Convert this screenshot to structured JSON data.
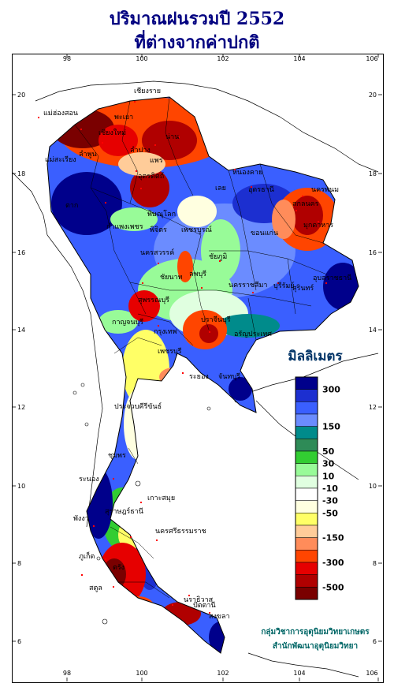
{
  "title_line1": "ปริมาณฝนรวมปี  2552",
  "title_line2": "ที่ต่างจากค่าปกติ",
  "axes": {
    "x_ticks": [
      "98",
      "100",
      "102",
      "104",
      "106"
    ],
    "y_ticks": [
      "20",
      "18",
      "16",
      "14",
      "12",
      "10",
      "8",
      "6"
    ]
  },
  "legend": {
    "title": "มิลลิเมตร",
    "colors": [
      "#00008b",
      "#1c2fd0",
      "#3a5fff",
      "#6b8cff",
      "#008b8b",
      "#2e8b57",
      "#32cd32",
      "#98fb98",
      "#e0ffe0",
      "#ffffff",
      "#ffffe0",
      "#ffff66",
      "#ffcc99",
      "#ff8c5a",
      "#ff4500",
      "#e60000",
      "#b00000",
      "#7a0000"
    ],
    "labels": [
      "300",
      "150",
      "50",
      "30",
      "10",
      "-10",
      "-30",
      "-50",
      "-150",
      "-300",
      "-500"
    ]
  },
  "places": [
    {
      "name": "เชียงราย"
    },
    {
      "name": "แม่ฮ่องสอน"
    },
    {
      "name": "พะเยา"
    },
    {
      "name": "เชียงใหม่"
    },
    {
      "name": "ลำพูน"
    },
    {
      "name": "ลำปาง"
    },
    {
      "name": "น่าน"
    },
    {
      "name": "แพร่"
    },
    {
      "name": "แม่สะเรียง"
    },
    {
      "name": "อุตรดิตถ์"
    },
    {
      "name": "ตาก"
    },
    {
      "name": "พิษณุโลก"
    },
    {
      "name": "หนองคาย"
    },
    {
      "name": "อุดรธานี"
    },
    {
      "name": "เลย"
    },
    {
      "name": "นครพนม"
    },
    {
      "name": "สกลนคร"
    },
    {
      "name": "มุกดาหาร"
    },
    {
      "name": "กำแพงเพชร"
    },
    {
      "name": "พิจิตร"
    },
    {
      "name": "เพชรบูรณ์"
    },
    {
      "name": "ขอนแก่น"
    },
    {
      "name": "นครสวรรค์"
    },
    {
      "name": "ชัยภูมิ"
    },
    {
      "name": "ชัยนาท"
    },
    {
      "name": "ลพบุรี"
    },
    {
      "name": "นครราชสีมา"
    },
    {
      "name": "บุรีรัมย์"
    },
    {
      "name": "สุรินทร์"
    },
    {
      "name": "อุบลราชธานี"
    },
    {
      "name": "สุพรรณบุรี"
    },
    {
      "name": "กาญจนบุรี"
    },
    {
      "name": "กรุงเทพ"
    },
    {
      "name": "ปราจีนบุรี"
    },
    {
      "name": "อรัญประเทศ"
    },
    {
      "name": "เพชรบุรี"
    },
    {
      "name": "ระยอง"
    },
    {
      "name": "จันทบุรี"
    },
    {
      "name": "ประจวบคีรีขันธ์"
    },
    {
      "name": "ชุมพร"
    },
    {
      "name": "ระนอง"
    },
    {
      "name": "เกาะสมุย"
    },
    {
      "name": "สุราษฎร์ธานี"
    },
    {
      "name": "นครศรีธรรมราช"
    },
    {
      "name": "พังงา"
    },
    {
      "name": "ภูเก็ต"
    },
    {
      "name": "ตรัง"
    },
    {
      "name": "สตูล"
    },
    {
      "name": "ปัตตานี"
    },
    {
      "name": "นราธิวาส"
    },
    {
      "name": "สงขลา"
    }
  ],
  "credit_line1": "กลุ่มวิชาการอุตุนิยมวิทยาเกษตร",
  "credit_line2": "สำนักพัฒนาอุตุนิยมวิทยา"
}
